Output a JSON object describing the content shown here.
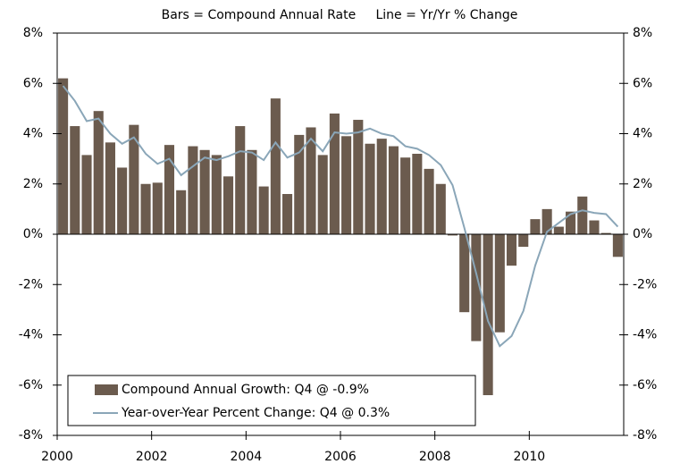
{
  "chart_data": {
    "type": "bar_line",
    "subtitle": "Bars = Compound Annual Rate     Line = Yr/Yr % Change",
    "xlim": [
      2000,
      2012
    ],
    "xticks": [
      2000,
      2002,
      2004,
      2006,
      2008,
      2010
    ],
    "ylim": [
      -8,
      8
    ],
    "yticks": [
      {
        "value": 8,
        "label": "8%"
      },
      {
        "value": 6,
        "label": "6%"
      },
      {
        "value": 4,
        "label": "4%"
      },
      {
        "value": 2,
        "label": "2%"
      },
      {
        "value": 0,
        "label": "0%"
      },
      {
        "value": -2,
        "label": "-2%"
      },
      {
        "value": -4,
        "label": "-4%"
      },
      {
        "value": -6,
        "label": "-6%"
      },
      {
        "value": -8,
        "label": "-8%"
      }
    ],
    "x": [
      2000.125,
      2000.375,
      2000.625,
      2000.875,
      2001.125,
      2001.375,
      2001.625,
      2001.875,
      2002.125,
      2002.375,
      2002.625,
      2002.875,
      2003.125,
      2003.375,
      2003.625,
      2003.875,
      2004.125,
      2004.375,
      2004.625,
      2004.875,
      2005.125,
      2005.375,
      2005.625,
      2005.875,
      2006.125,
      2006.375,
      2006.625,
      2006.875,
      2007.125,
      2007.375,
      2007.625,
      2007.875,
      2008.125,
      2008.375,
      2008.625,
      2008.875,
      2009.125,
      2009.375,
      2009.625,
      2009.875,
      2010.125,
      2010.375,
      2010.625,
      2010.875,
      2011.125,
      2011.375,
      2011.625,
      2011.875
    ],
    "series": [
      {
        "name": "Compound Annual Growth: Q4 @ -0.9%",
        "type": "bar",
        "color": "#6b5b4e",
        "values": [
          6.2,
          4.3,
          3.15,
          4.9,
          3.65,
          2.65,
          4.35,
          2.0,
          2.05,
          3.55,
          1.75,
          3.5,
          3.35,
          3.15,
          2.3,
          4.3,
          3.35,
          1.9,
          5.4,
          1.6,
          3.95,
          4.25,
          3.15,
          4.8,
          3.9,
          4.55,
          3.6,
          3.8,
          3.5,
          3.05,
          3.2,
          2.6,
          2.0,
          -0.05,
          -3.1,
          -4.25,
          -6.4,
          -3.9,
          -1.25,
          -0.5,
          0.6,
          1.0,
          0.3,
          0.9,
          1.5,
          0.55,
          0.05,
          -0.9
        ]
      },
      {
        "name": "Year-over-Year Percent Change: Q4 @ 0.3%",
        "type": "line",
        "color": "#8aa6b8",
        "values": [
          5.9,
          5.3,
          4.5,
          4.6,
          4.0,
          3.6,
          3.85,
          3.2,
          2.8,
          3.0,
          2.35,
          2.7,
          3.05,
          2.95,
          3.1,
          3.3,
          3.25,
          2.95,
          3.65,
          3.05,
          3.25,
          3.8,
          3.3,
          4.05,
          4.0,
          4.05,
          4.2,
          4.0,
          3.9,
          3.5,
          3.4,
          3.15,
          2.75,
          1.95,
          0.25,
          -1.55,
          -3.45,
          -4.45,
          -4.05,
          -3.05,
          -1.25,
          0.1,
          0.45,
          0.8,
          0.95,
          0.85,
          0.8,
          0.3
        ]
      }
    ]
  }
}
